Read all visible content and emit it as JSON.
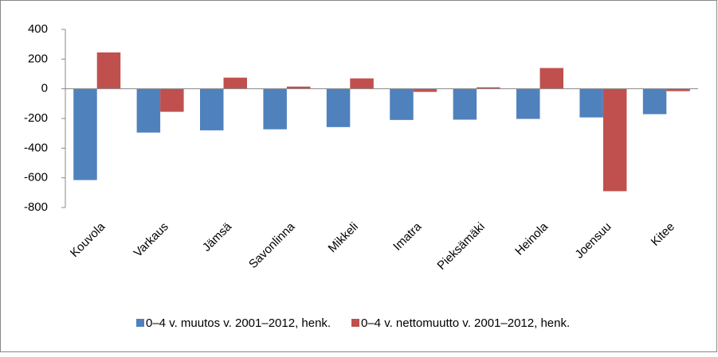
{
  "chart_data": {
    "type": "bar",
    "categories": [
      "Kouvola",
      "Varkaus",
      "Jämsä",
      "Savonlinna",
      "Mikkeli",
      "Imatra",
      "Pieksämäki",
      "Heinola",
      "Joensuu",
      "Kitee"
    ],
    "series": [
      {
        "name": "0–4 v. muutos v. 2001–2012, henk.",
        "color": "#4f81bd",
        "values": [
          -615,
          -295,
          -280,
          -273,
          -258,
          -210,
          -208,
          -203,
          -193,
          -171
        ]
      },
      {
        "name": "0–4 v. nettomuutto v. 2001–2012, henk.",
        "color": "#c0504d",
        "values": [
          245,
          -155,
          75,
          15,
          70,
          -21,
          10,
          140,
          -690,
          -16
        ]
      }
    ],
    "ylim": [
      -800,
      400
    ],
    "yticks": [
      -800,
      -600,
      -400,
      -200,
      0,
      200,
      400
    ],
    "grid": false,
    "legend": "bottom"
  }
}
